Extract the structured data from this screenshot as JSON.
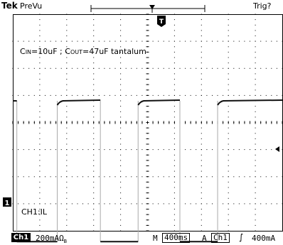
{
  "header": {
    "brand": "Tek",
    "mode": "PreVu",
    "trigger_status": "Trig?"
  },
  "annotation": {
    "cin_sub": "IN",
    "cin_value": "=10uF ; C",
    "cout_sub": "OUT",
    "cout_value": "=47uF tantalum"
  },
  "channel_label": "CH1:IL",
  "channel_marker": "1",
  "trigger_marker": "T",
  "footer": {
    "channel": "Ch1",
    "vertical_scale": "200mA",
    "vertical_units": "Ω",
    "bw_symbol": "B",
    "horizontal_label": "M",
    "horizontal_scale": "400ms",
    "acq_label": "A",
    "trigger_source": "Ch1",
    "trigger_slope": "∫",
    "trigger_level": "400mA"
  },
  "colors": {
    "background": "#ffffff",
    "trace": "#111111",
    "grid": "#000000"
  },
  "waveform": {
    "type": "square",
    "low_level_div": -4.4,
    "high_level_div": 0.8,
    "edges_div": [
      {
        "fall": 0.15,
        "rise": 1.65
      },
      {
        "fall": 3.25,
        "rise": 4.65
      },
      {
        "fall": 6.2,
        "rise": 7.6
      }
    ]
  }
}
